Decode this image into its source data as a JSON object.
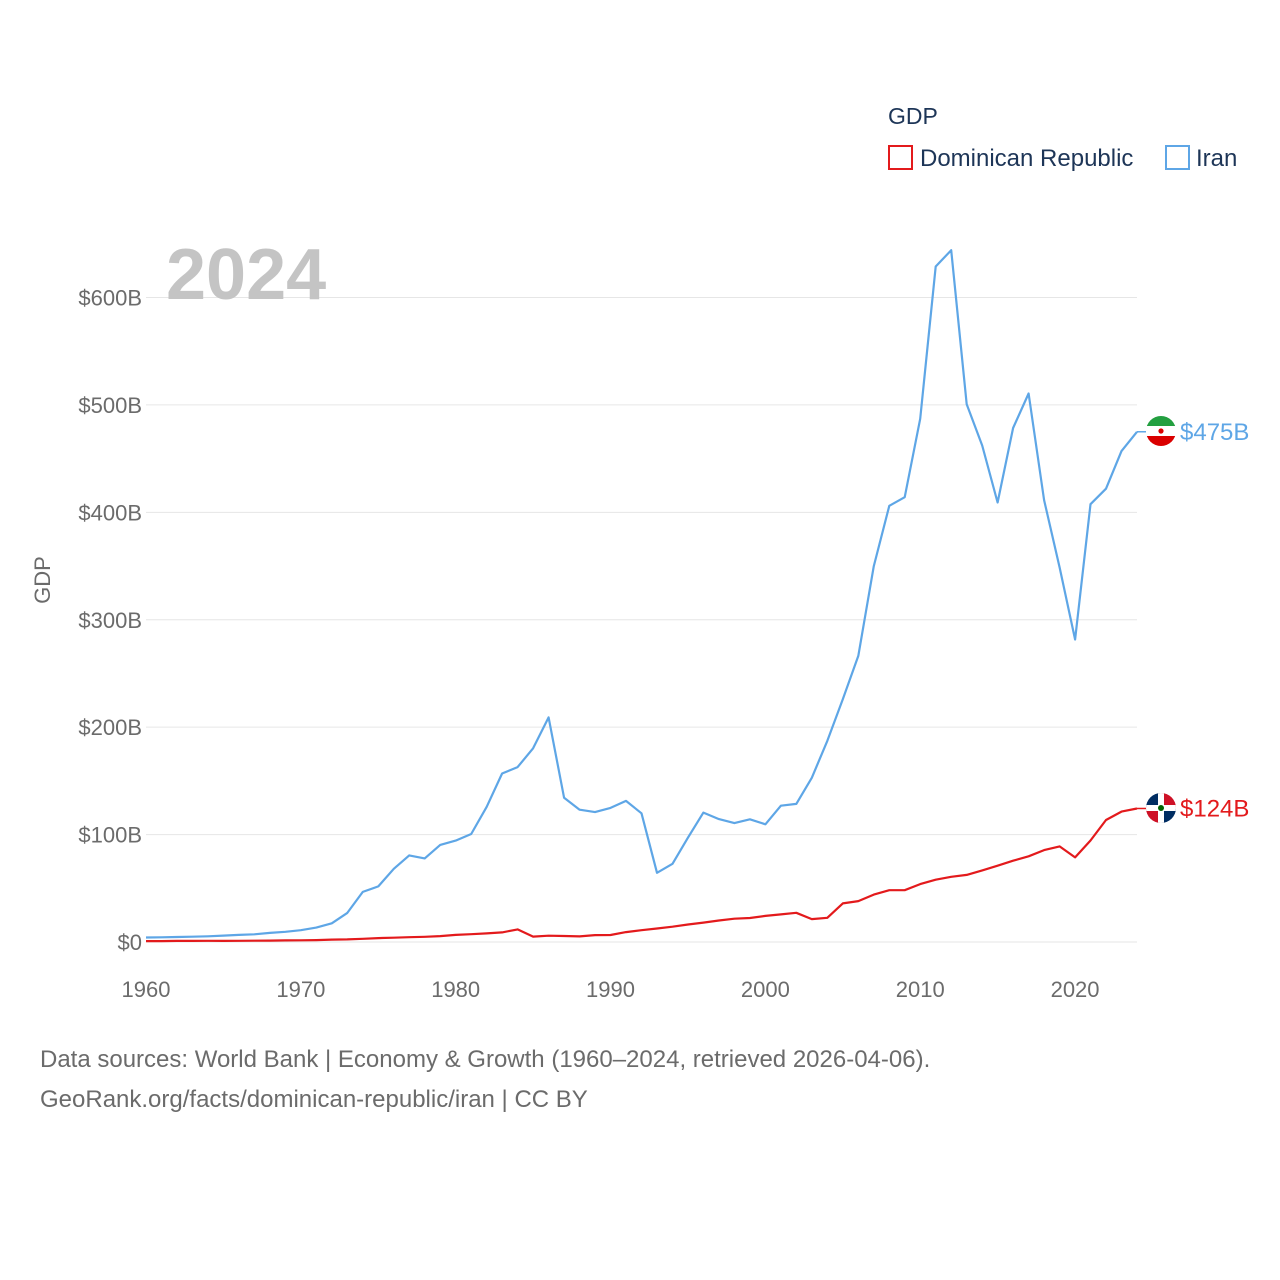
{
  "chart_data": {
    "type": "line",
    "title": "GDP",
    "ylabel": "GDP",
    "xlabel": "",
    "year_label": "2024",
    "xlim": [
      1960,
      2024
    ],
    "ylim": [
      0,
      650
    ],
    "x_ticks": [
      1960,
      1970,
      1980,
      1990,
      2000,
      2010,
      2020
    ],
    "x_tick_labels": [
      "1960",
      "1970",
      "1980",
      "1990",
      "2000",
      "2010",
      "2020"
    ],
    "y_ticks": [
      0,
      100,
      200,
      300,
      400,
      500,
      600
    ],
    "y_tick_labels": [
      "$0",
      "$100B",
      "$200B",
      "$300B",
      "$400B",
      "$500B",
      "$600B"
    ],
    "legend": {
      "title": "GDP",
      "position": "top-right"
    },
    "x": [
      1960,
      1961,
      1962,
      1963,
      1964,
      1965,
      1966,
      1967,
      1968,
      1969,
      1970,
      1971,
      1972,
      1973,
      1974,
      1975,
      1976,
      1977,
      1978,
      1979,
      1980,
      1981,
      1982,
      1983,
      1984,
      1985,
      1986,
      1987,
      1988,
      1989,
      1990,
      1991,
      1992,
      1993,
      1994,
      1995,
      1996,
      1997,
      1998,
      1999,
      2000,
      2001,
      2002,
      2003,
      2004,
      2005,
      2006,
      2007,
      2008,
      2009,
      2010,
      2011,
      2012,
      2013,
      2014,
      2015,
      2016,
      2017,
      2018,
      2019,
      2020,
      2021,
      2022,
      2023,
      2024
    ],
    "series": [
      {
        "name": "Dominican Republic",
        "color": "#e31a1c",
        "end_label": "$124B",
        "values": [
          0.8,
          0.8,
          1.0,
          1.0,
          1.1,
          1.0,
          1.1,
          1.2,
          1.3,
          1.5,
          1.6,
          1.8,
          2.2,
          2.4,
          3.0,
          3.6,
          4.0,
          4.5,
          4.8,
          5.5,
          6.6,
          7.3,
          8.0,
          8.9,
          11.7,
          5.0,
          5.9,
          5.6,
          5.2,
          6.4,
          6.5,
          9.2,
          11.0,
          12.6,
          14.2,
          16.3,
          18.1,
          20.0,
          21.7,
          22.3,
          24.3,
          25.7,
          27.2,
          21.3,
          22.5,
          35.9,
          38.1,
          44.1,
          48.2,
          48.2,
          53.9,
          58.0,
          60.7,
          62.5,
          66.7,
          71.0,
          75.7,
          79.8,
          85.6,
          89.0,
          78.8,
          94.5,
          113.6,
          121.4,
          124.3
        ]
      },
      {
        "name": "Iran",
        "color": "#5ea6e6",
        "end_label": "$475B",
        "values": [
          4.2,
          4.4,
          4.7,
          4.9,
          5.3,
          6.0,
          6.6,
          7.2,
          8.5,
          9.5,
          11.0,
          13.4,
          17.4,
          27.1,
          46.6,
          51.8,
          68.1,
          80.6,
          77.8,
          90.4,
          94.4,
          100.5,
          125.9,
          156.9,
          162.8,
          180.3,
          209.1,
          134.2,
          123.2,
          120.9,
          124.8,
          131.4,
          119.8,
          64.4,
          72.8,
          97.2,
          120.5,
          114.4,
          110.7,
          114.2,
          109.6,
          126.9,
          128.6,
          152.9,
          187.2,
          226.0,
          266.3,
          349.9,
          406.1,
          414.1,
          487.1,
          628.9,
          644.0,
          500.6,
          462.2,
          409.2,
          478.5,
          510.6,
          411.4,
          348.7,
          281.6,
          407.6,
          422.0,
          457.0,
          475.0
        ]
      }
    ]
  },
  "footer": {
    "line1": "Data sources: World Bank | Economy & Growth (1960–2024, retrieved 2026-04-06).",
    "line2": "GeoRank.org/facts/dominican-republic/iran | CC BY"
  }
}
